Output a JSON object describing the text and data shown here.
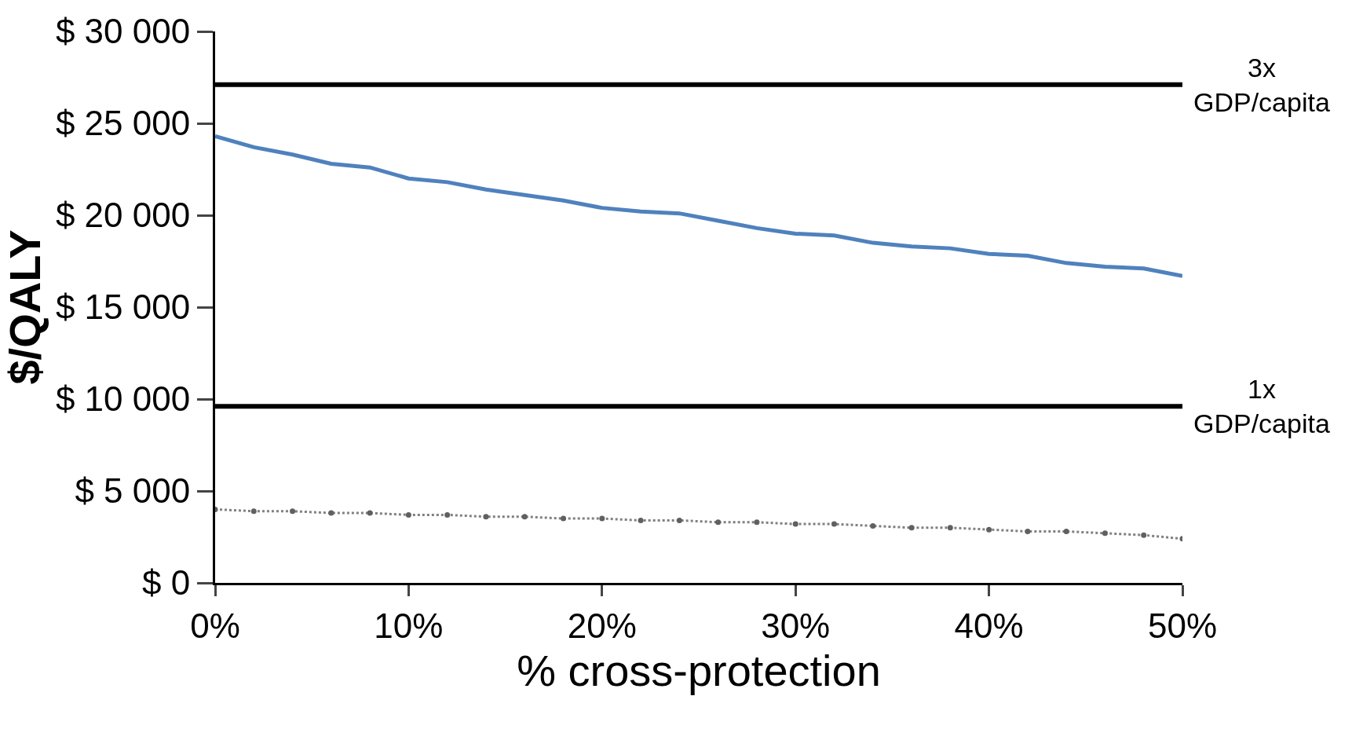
{
  "chart_data": {
    "type": "line",
    "xlabel": "% cross-protection",
    "ylabel": "$/QALY",
    "x": [
      0,
      2,
      4,
      6,
      8,
      10,
      12,
      14,
      16,
      18,
      20,
      22,
      24,
      26,
      28,
      30,
      32,
      34,
      36,
      38,
      40,
      42,
      44,
      46,
      48,
      50
    ],
    "series": [
      {
        "color": "#4f81bd",
        "marker": "none",
        "values": [
          24300,
          23700,
          23300,
          22800,
          22600,
          22000,
          21800,
          21400,
          21100,
          20800,
          20400,
          20200,
          20100,
          19700,
          19300,
          19000,
          18900,
          18500,
          18300,
          18200,
          17900,
          17800,
          17400,
          17200,
          17100,
          16700
        ]
      },
      {
        "color": "#808080",
        "marker": "circle",
        "line_style": "dotted",
        "values": [
          4000,
          3900,
          3900,
          3800,
          3800,
          3700,
          3700,
          3600,
          3600,
          3500,
          3500,
          3400,
          3400,
          3300,
          3300,
          3200,
          3200,
          3100,
          3000,
          3000,
          2900,
          2800,
          2800,
          2700,
          2600,
          2400
        ]
      }
    ],
    "xlim": [
      0,
      50
    ],
    "xticks": [
      {
        "value": 0,
        "label": "0%"
      },
      {
        "value": 10,
        "label": "10%"
      },
      {
        "value": 20,
        "label": "20%"
      },
      {
        "value": 30,
        "label": "30%"
      },
      {
        "value": 40,
        "label": "40%"
      },
      {
        "value": 50,
        "label": "50%"
      }
    ],
    "ylim": [
      0,
      30000
    ],
    "yticks": [
      {
        "value": 0,
        "label": "$ 0"
      },
      {
        "value": 5000,
        "label": "$ 5 000"
      },
      {
        "value": 10000,
        "label": "$ 10 000"
      },
      {
        "value": 15000,
        "label": "$ 15 000"
      },
      {
        "value": 20000,
        "label": "$ 20 000"
      },
      {
        "value": 25000,
        "label": "$ 25 000"
      },
      {
        "value": 30000,
        "label": "$ 30 000"
      }
    ],
    "ref_lines": [
      {
        "axis": "y",
        "value": 27100,
        "label": "3x\nGDP/capita",
        "color": "#000000"
      },
      {
        "axis": "y",
        "value": 9600,
        "label": "1x\nGDP/capita",
        "color": "#000000"
      }
    ]
  }
}
